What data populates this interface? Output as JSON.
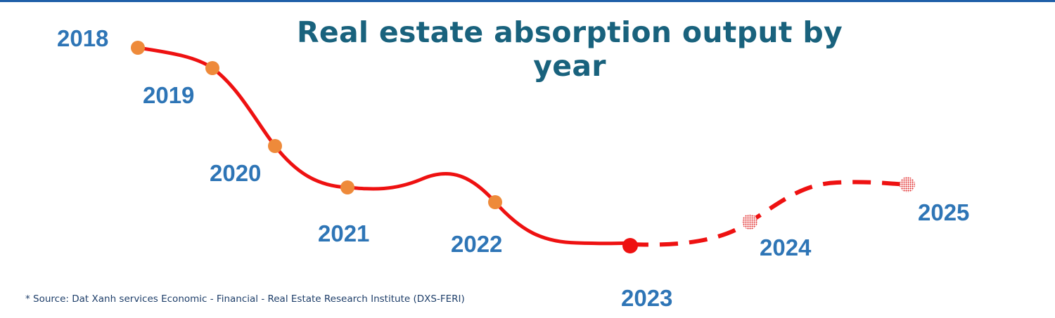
{
  "chart_data": {
    "type": "line",
    "title": "Real estate absorption output by year",
    "categories": [
      "2018",
      "2019",
      "2020",
      "2021",
      "2022",
      "2023",
      "2024",
      "2025"
    ],
    "series": [
      {
        "segment": "actual",
        "style": "solid",
        "categories": [
          "2018",
          "2019",
          "2020",
          "2021",
          "2022",
          "2023"
        ]
      },
      {
        "segment": "forecast",
        "style": "dashed",
        "categories": [
          "2023",
          "2024",
          "2025"
        ]
      }
    ],
    "trend": "declining from 2018 to a low in 2023, forecast recovery in 2024-2025",
    "axes_shown": false,
    "grid": false,
    "colors": {
      "line": "#ee1111",
      "actual_marker": "#ee8a3a",
      "label": "#2e75b6",
      "title": "#19627d",
      "top_bar": "#1f5fa8"
    }
  },
  "source": "* Source: Dat Xanh services Economic - Financial - Real Estate Research Institute (DXS-FERI)"
}
